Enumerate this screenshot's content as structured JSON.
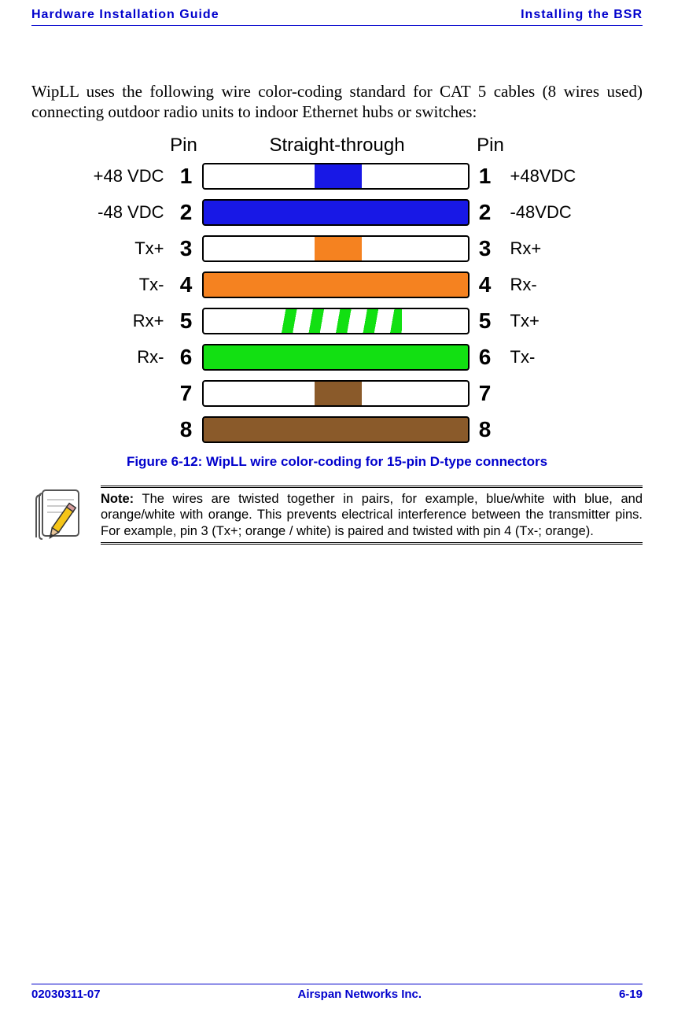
{
  "header": {
    "left": "Hardware Installation Guide",
    "right": "Installing the BSR"
  },
  "intro_paragraph": "WipLL uses the following wire color-coding standard for CAT 5 cables (8 wires used) connecting outdoor radio units to indoor Ethernet hubs or switches:",
  "diagram": {
    "header_pin_left": "Pin",
    "header_mid": "Straight-through",
    "header_pin_right": "Pin",
    "rows": [
      {
        "left_label": "+48 VDC",
        "pin_l": "1",
        "pin_r": "1",
        "right_label": "+48VDC",
        "bg": "#ffffff",
        "stripe_color": "#1818e6",
        "pattern": "center-band"
      },
      {
        "left_label": "-48 VDC",
        "pin_l": "2",
        "pin_r": "2",
        "right_label": "-48VDC",
        "bg": "#1818e6",
        "stripe_color": null,
        "pattern": "solid"
      },
      {
        "left_label": "Tx+",
        "pin_l": "3",
        "pin_r": "3",
        "right_label": "Rx+",
        "bg": "#ffffff",
        "stripe_color": "#f58220",
        "pattern": "center-band"
      },
      {
        "left_label": "Tx-",
        "pin_l": "4",
        "pin_r": "4",
        "right_label": "Rx-",
        "bg": "#f58220",
        "stripe_color": null,
        "pattern": "solid"
      },
      {
        "left_label": "Rx+",
        "pin_l": "5",
        "pin_r": "5",
        "right_label": "Tx+",
        "bg": "#ffffff",
        "stripe_color": "#12e012",
        "pattern": "dashes"
      },
      {
        "left_label": "Rx-",
        "pin_l": "6",
        "pin_r": "6",
        "right_label": "Tx-",
        "bg": "#12e012",
        "stripe_color": null,
        "pattern": "solid"
      },
      {
        "left_label": "",
        "pin_l": "7",
        "pin_r": "7",
        "right_label": "",
        "bg": "#ffffff",
        "stripe_color": "#8a5a2a",
        "pattern": "center-band"
      },
      {
        "left_label": "",
        "pin_l": "8",
        "pin_r": "8",
        "right_label": "",
        "bg": "#8a5a2a",
        "stripe_color": null,
        "pattern": "solid"
      }
    ]
  },
  "figure_caption": "Figure 6-12:  WipLL wire color-coding for 15-pin D-type connectors",
  "note": {
    "label": "Note:",
    "text": "  The wires are twisted together in pairs, for example, blue/white with blue, and orange/white with orange. This prevents electrical interference between the transmitter pins. For example, pin 3 (Tx+; orange / white) is paired and twisted with pin 4 (Tx-; orange)."
  },
  "footer": {
    "left": "02030311-07",
    "center": "Airspan Networks Inc.",
    "right": "6-19"
  },
  "colors": {
    "link_blue": "#0000cc",
    "pencil_yellow": "#f5c518",
    "pencil_outline": "#333333",
    "page_outline": "#555555"
  }
}
